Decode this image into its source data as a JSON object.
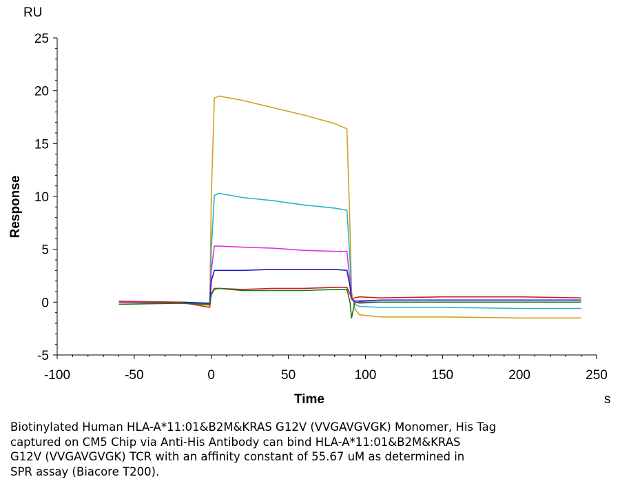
{
  "chart_data": {
    "type": "line",
    "y_unit": "RU",
    "x_unit": "s",
    "xlabel": "Time",
    "ylabel": "Response",
    "xlim": [
      -100,
      250
    ],
    "ylim": [
      -5,
      25
    ],
    "x_ticks": [
      -100,
      -50,
      0,
      50,
      100,
      150,
      200,
      250
    ],
    "y_ticks": [
      -5,
      0,
      5,
      10,
      15,
      20,
      25
    ],
    "grid": false,
    "legend": "none",
    "series": [
      {
        "color": "#d4a020",
        "x": [
          -60,
          -20,
          -1,
          0,
          2,
          5,
          20,
          40,
          60,
          80,
          88,
          90,
          91,
          93,
          96,
          110,
          150,
          200,
          240
        ],
        "y": [
          0,
          -0.1,
          -0.3,
          10,
          19.3,
          19.5,
          19.1,
          18.4,
          17.7,
          16.9,
          16.4,
          7,
          1,
          -0.6,
          -1.2,
          -1.4,
          -1.4,
          -1.5,
          -1.5
        ]
      },
      {
        "color": "#20b8c8",
        "x": [
          -60,
          -20,
          -1,
          0,
          2,
          5,
          20,
          40,
          60,
          80,
          88,
          90,
          91,
          93,
          96,
          110,
          150,
          200,
          240
        ],
        "y": [
          0,
          -0.1,
          -0.2,
          5,
          10.1,
          10.3,
          9.9,
          9.6,
          9.2,
          8.9,
          8.7,
          4,
          0.5,
          -0.2,
          -0.4,
          -0.5,
          -0.5,
          -0.6,
          -0.6
        ]
      },
      {
        "color": "#e030e0",
        "x": [
          -60,
          -20,
          -1,
          0,
          2,
          5,
          20,
          40,
          60,
          80,
          88,
          90,
          91,
          93,
          96,
          110,
          150,
          200,
          240
        ],
        "y": [
          0.1,
          0,
          -0.1,
          3,
          5.3,
          5.3,
          5.2,
          5.1,
          4.9,
          4.8,
          4.8,
          2,
          0.3,
          0,
          -0.1,
          0,
          0,
          0,
          0
        ]
      },
      {
        "color": "#1a1ac8",
        "x": [
          -60,
          -20,
          -1,
          0,
          2,
          5,
          20,
          40,
          60,
          80,
          88,
          90,
          91,
          93,
          96,
          110,
          150,
          200,
          240
        ],
        "y": [
          0,
          0,
          -0.1,
          2,
          3.0,
          3.0,
          3.0,
          3.1,
          3.1,
          3.1,
          3.0,
          1.5,
          0.3,
          0.1,
          0.1,
          0.2,
          0.2,
          0.2,
          0.2
        ]
      },
      {
        "color": "#c82020",
        "x": [
          -60,
          -20,
          -1,
          0,
          2,
          5,
          20,
          40,
          60,
          80,
          88,
          90,
          91,
          93,
          96,
          110,
          150,
          200,
          240
        ],
        "y": [
          0,
          0,
          -0.5,
          0.8,
          1.3,
          1.3,
          1.2,
          1.3,
          1.3,
          1.4,
          1.4,
          0.8,
          0.3,
          0.4,
          0.5,
          0.4,
          0.5,
          0.5,
          0.4
        ]
      },
      {
        "color": "#1a7a1a",
        "x": [
          -60,
          -20,
          -1,
          0,
          2,
          5,
          20,
          40,
          60,
          80,
          88,
          90,
          91,
          93,
          96,
          110,
          150,
          200,
          240
        ],
        "y": [
          -0.2,
          -0.1,
          -0.2,
          0.7,
          1.2,
          1.3,
          1.1,
          1.1,
          1.1,
          1.2,
          1.2,
          0,
          -1.5,
          -0.1,
          0,
          0,
          0,
          0,
          0
        ]
      }
    ]
  },
  "caption": "Biotinylated Human HLA-A*11:01&B2M&KRAS G12V (VVGAVGVGK) Monomer, His Tag\ncaptured on CM5 Chip via Anti-His Antibody can bind HLA-A*11:01&B2M&KRAS\nG12V (VVGAVGVGK) TCR with an affinity constant of 55.67 uM as determined in\nSPR assay (Biacore T200)."
}
